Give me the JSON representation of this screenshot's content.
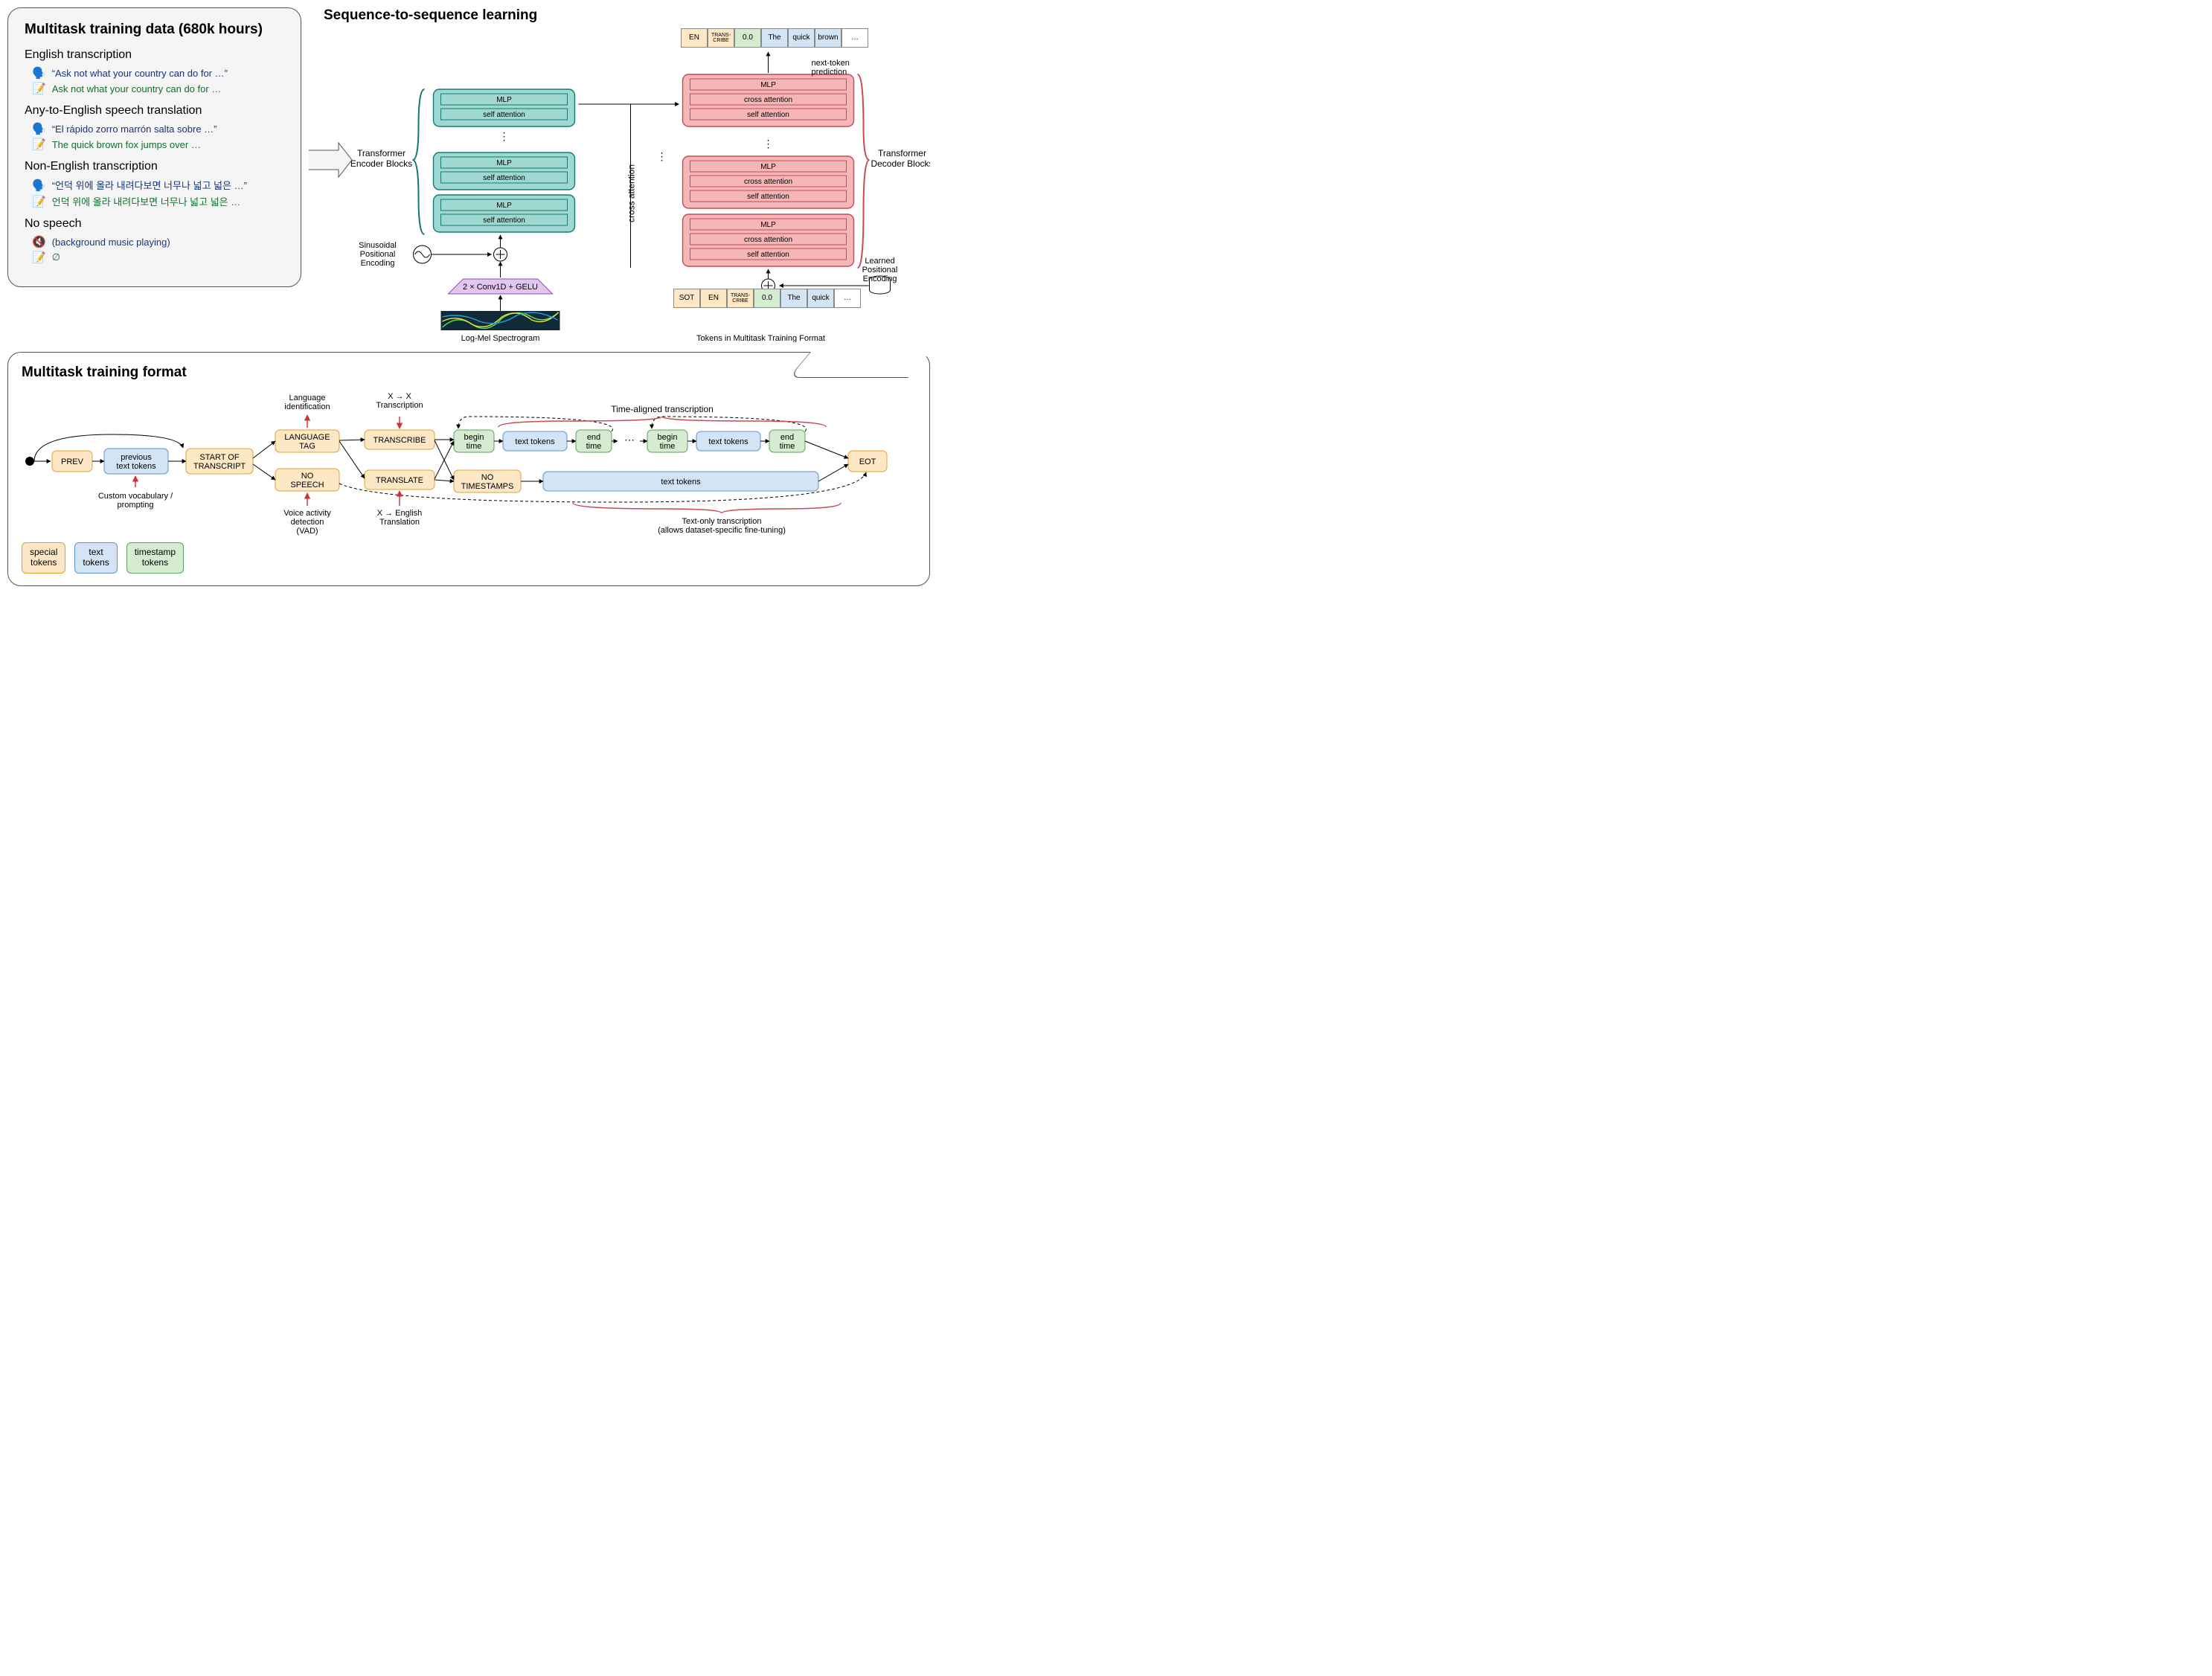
{
  "left_panel": {
    "title": "Multitask training data (680k hours)",
    "groups": [
      {
        "heading": "English transcription",
        "speak": "“Ask not what your country can do for …”",
        "write": "Ask not what your country can do for …"
      },
      {
        "heading": "Any-to-English speech translation",
        "speak": "“El rápido zorro marrón salta sobre …”",
        "write": "The quick brown fox jumps over …"
      },
      {
        "heading": "Non-English transcription",
        "speak": "“언덕 위에 올라 내려다보면 너무나 넓고 넓은 …”",
        "write": "언덕 위에 올라 내려다보면 너무나 넓고 넓은 …"
      },
      {
        "heading": "No speech",
        "speak": "(background music playing)",
        "write": "∅"
      }
    ]
  },
  "seq2seq": {
    "title": "Sequence-to-sequence learning",
    "output_tokens": [
      {
        "t": "EN",
        "c": "#fde7c4"
      },
      {
        "t": "TRANS-\nCRIBE",
        "c": "#fde7c4",
        "small": true
      },
      {
        "t": "0.0",
        "c": "#d5ecd0"
      },
      {
        "t": "The",
        "c": "#d3e4f5"
      },
      {
        "t": "quick",
        "c": "#d3e4f5"
      },
      {
        "t": "brown",
        "c": "#d3e4f5"
      },
      {
        "t": "…",
        "c": "#ffffff"
      }
    ],
    "input_tokens": [
      {
        "t": "SOT",
        "c": "#fde7c4"
      },
      {
        "t": "EN",
        "c": "#fde7c4"
      },
      {
        "t": "TRANS-\nCRIBE",
        "c": "#fde7c4",
        "small": true
      },
      {
        "t": "0.0",
        "c": "#d5ecd0"
      },
      {
        "t": "The",
        "c": "#d3e4f5"
      },
      {
        "t": "quick",
        "c": "#d3e4f5"
      },
      {
        "t": "…",
        "c": "#ffffff"
      }
    ],
    "labels": {
      "next_token": "next-token\nprediction",
      "enc_label": "Transformer\nEncoder Blocks",
      "dec_label": "Transformer\nDecoder Blocks",
      "sin_pe": "Sinusoidal\nPositional\nEncoding",
      "learned_pe": "Learned\nPositional\nEncoding",
      "conv": "2 × Conv1D + GELU",
      "logmel": "Log-Mel Spectrogram",
      "cross": "cross attention",
      "tokens_fmt": "Tokens in Multitask Training Format",
      "mlp": "MLP",
      "self_attn": "self attention",
      "cross_attn": "cross attention"
    },
    "colors": {
      "encoder_fill": "#9fd8d0",
      "encoder_line": "#157a72",
      "decoder_fill": "#f4b6b6",
      "decoder_line": "#c94a55",
      "conv_fill": "#e3c6f0",
      "conv_line": "#8a4fbf",
      "brace": "#157a72",
      "brace_red": "#c94a55"
    }
  },
  "format_panel": {
    "title": "Multitask training format",
    "legend": [
      {
        "t": "special\ntokens",
        "cls": "tok-orange"
      },
      {
        "t": "text\ntokens",
        "cls": "tok-blue"
      },
      {
        "t": "timestamp\ntokens",
        "cls": "tok-green"
      }
    ],
    "nodes": {
      "prev": "PREV",
      "prev_text": "previous\ntext tokens",
      "sot": "START OF\nTRANSCRIPT",
      "lang": "LANGUAGE\nTAG",
      "nospeech": "NO\nSPEECH",
      "transcribe": "TRANSCRIBE",
      "translate": "TRANSLATE",
      "begin": "begin\ntime",
      "text_tokens": "text tokens",
      "end": "end\ntime",
      "nots": "NO\nTIMESTAMPS",
      "text_tokens_long": "text tokens",
      "eot": "EOT"
    },
    "annot": {
      "custom": "Custom vocabulary /\nprompting",
      "langid": "Language\nidentification",
      "vad": "Voice activity\ndetection\n(VAD)",
      "xx": "X → X\nTranscription",
      "xe": "X → English\nTranslation",
      "time_aligned": "Time-aligned transcription",
      "text_only": "Text-only transcription\n(allows dataset-specific fine-tuning)"
    }
  }
}
